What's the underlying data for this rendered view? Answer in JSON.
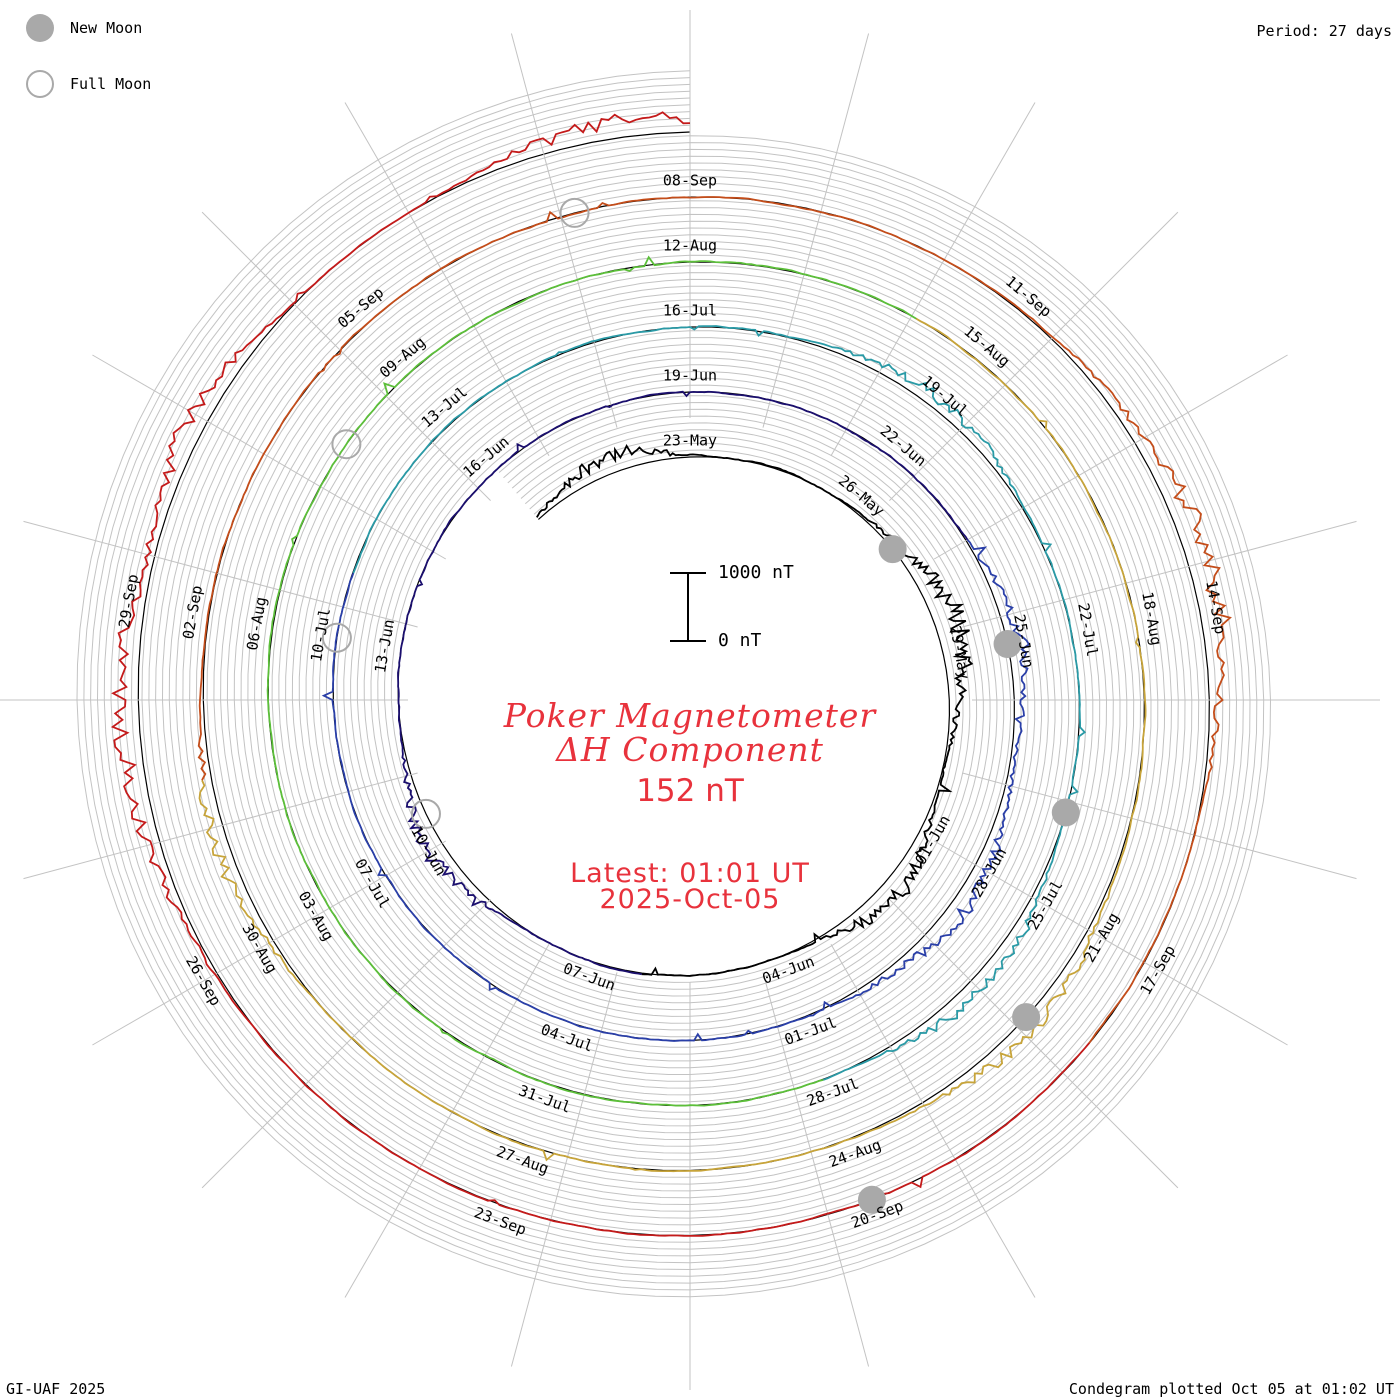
{
  "period_label": "Period: 27 days",
  "legend": {
    "new_moon": "New Moon",
    "full_moon": "Full Moon"
  },
  "footer": {
    "credit": "GI-UAF 2025",
    "plotted": "Condegram plotted Oct 05 at 01:02 UT"
  },
  "colors": {
    "accent": "#e8323c",
    "grid": "#b4b4b4",
    "moon": "#a9a9a9"
  },
  "chart_data": {
    "type": "line",
    "subtype": "condegram-spiral",
    "title": "Poker Magnetometer",
    "subtitle": "ΔH Component",
    "current_value": "152 nT",
    "latest_time": "Latest: 01:01 UT",
    "latest_date": "2025-Oct-05",
    "scale": {
      "top_label": "1000 nT",
      "bottom_label": "0 nT",
      "range_nT": [
        0,
        1000
      ]
    },
    "period_days": 27,
    "start_date": "2025-05-20",
    "end_date": "2025-10-05",
    "date_labels": [
      "23-May",
      "26-May",
      "29-May",
      "01-Jun",
      "04-Jun",
      "07-Jun",
      "10-Jun",
      "13-Jun",
      "16-Jun",
      "19-Jun",
      "22-Jun",
      "25-Jun",
      "28-Jun",
      "01-Jul",
      "04-Jul",
      "07-Jul",
      "10-Jul",
      "13-Jul",
      "16-Jul",
      "19-Jul",
      "22-Jul",
      "25-Jul",
      "28-Jul",
      "31-Jul",
      "03-Aug",
      "06-Aug",
      "09-Aug",
      "12-Aug",
      "15-Aug",
      "18-Aug",
      "21-Aug",
      "24-Aug",
      "27-Aug",
      "30-Aug",
      "02-Sep",
      "05-Sep",
      "08-Sep",
      "11-Sep",
      "14-Sep",
      "17-Sep",
      "20-Sep",
      "23-Sep",
      "26-Sep",
      "29-Sep"
    ],
    "date_day_offsets": [
      3,
      6,
      9,
      12,
      15,
      18,
      21,
      24,
      27,
      30,
      33,
      36,
      39,
      42,
      45,
      48,
      51,
      54,
      57,
      60,
      63,
      66,
      69,
      72,
      75,
      78,
      81,
      84,
      87,
      90,
      93,
      96,
      99,
      102,
      105,
      108,
      111,
      114,
      117,
      120,
      123,
      126,
      129,
      132
    ],
    "new_moon_day_offsets": [
      7,
      36,
      65,
      94,
      123
    ],
    "full_moon_day_offsets": [
      21.5,
      51,
      80,
      110
    ],
    "disturbances": [
      {
        "day": 1.5,
        "nT": 260,
        "width": 1.5
      },
      {
        "day": 8.5,
        "nT": 340,
        "width": 2.0
      },
      {
        "day": 13.0,
        "nT": 280,
        "width": 1.5
      },
      {
        "day": 21.0,
        "nT": 240,
        "width": 1.5
      },
      {
        "day": 36.0,
        "nT": 210,
        "width": 1.5
      },
      {
        "day": 39.5,
        "nT": 230,
        "width": 2.0
      },
      {
        "day": 60.0,
        "nT": 180,
        "width": 1.5
      },
      {
        "day": 67.0,
        "nT": 230,
        "width": 1.5
      },
      {
        "day": 94.0,
        "nT": 220,
        "width": 1.5
      },
      {
        "day": 103.0,
        "nT": 190,
        "width": 1.5
      },
      {
        "day": 116.5,
        "nT": 300,
        "width": 2.0
      },
      {
        "day": 131.0,
        "nT": 280,
        "width": 2.0
      },
      {
        "day": 133.5,
        "nT": 260,
        "width": 1.0
      },
      {
        "day": 137.5,
        "nT": 240,
        "width": 1.5
      }
    ],
    "series_colors": [
      "#000000",
      "#1b0f6e",
      "#2a3fa8",
      "#2a9aa6",
      "#5cbf3a",
      "#c7a43a",
      "#c44d1a",
      "#c41a1a"
    ]
  }
}
